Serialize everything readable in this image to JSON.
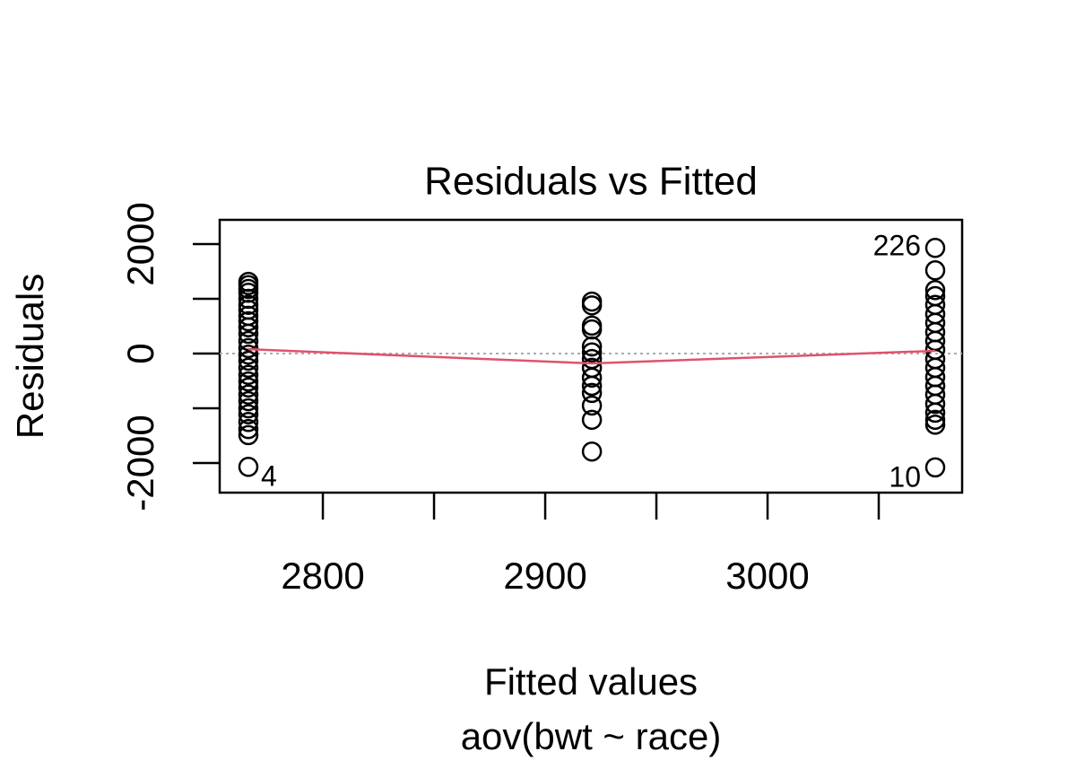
{
  "chart_data": {
    "type": "scatter",
    "title": "Residuals vs Fitted",
    "x_label": "Fitted values",
    "subtitle": "aov(bwt ~ race)",
    "y_label": "Residuals",
    "x": [
      2766.5,
      2766.5,
      2766.5,
      2766.5,
      2766.5,
      2766.5,
      2766.5,
      2766.5,
      2766.5,
      2766.5,
      2766.5,
      2766.5,
      2766.5,
      2766.5,
      2766.5,
      2766.5,
      2766.5,
      2766.5,
      2766.5,
      2766.5,
      2766.5,
      2766.5,
      2766.5,
      2766.5,
      2766.5,
      2766.5,
      2766.5,
      2921,
      2921,
      2921,
      2921,
      2921,
      2921,
      2921,
      2921,
      2921,
      2921,
      2921,
      2921,
      2921,
      2921,
      3075.4,
      3075.4,
      3075.4,
      3075.4,
      3075.4,
      3075.4,
      3075.4,
      3075.4,
      3075.4,
      3075.4,
      3075.4,
      3075.4,
      3075.4,
      3075.4,
      3075.4,
      3075.4,
      3075.4,
      3075.4,
      3075.4,
      3075.4
    ],
    "y": [
      1310,
      1250,
      1180,
      1110,
      1000,
      890,
      800,
      690,
      590,
      480,
      360,
      230,
      100,
      -20,
      -130,
      -260,
      -390,
      -510,
      -620,
      -750,
      -870,
      -1000,
      -1110,
      -1250,
      -1380,
      -1490,
      -2070,
      950,
      880,
      510,
      440,
      130,
      20,
      -100,
      -260,
      -440,
      -590,
      -720,
      -950,
      -1210,
      -1790,
      1930,
      1520,
      1160,
      1050,
      890,
      720,
      560,
      390,
      230,
      70,
      -100,
      -260,
      -430,
      -590,
      -750,
      -920,
      -1080,
      -1210,
      -1300,
      -2080
    ],
    "point_color": "#000000",
    "annotations": [
      {
        "text": "4",
        "x": 2766.5,
        "y": -2070,
        "side": "right"
      },
      {
        "text": "226",
        "x": 3075.4,
        "y": 1930,
        "side": "left"
      },
      {
        "text": "10",
        "x": 3075.4,
        "y": -2080,
        "side": "left"
      }
    ],
    "smooth": {
      "color": "#DF536B",
      "x": [
        2766.5,
        2921,
        3075.4
      ],
      "y": [
        80,
        -180,
        50
      ]
    },
    "reference_line": 0,
    "xlim": [
      2753.6,
      3087.5
    ],
    "xticks": [
      2800,
      2900,
      3000
    ],
    "x_unlabeled_ticks": [
      2850,
      2950,
      3050
    ],
    "ylim": [
      -2541,
      2443
    ],
    "yticks": [
      -2000,
      0,
      2000
    ],
    "y_unlabeled_ticks": [
      -1000,
      1000
    ]
  }
}
